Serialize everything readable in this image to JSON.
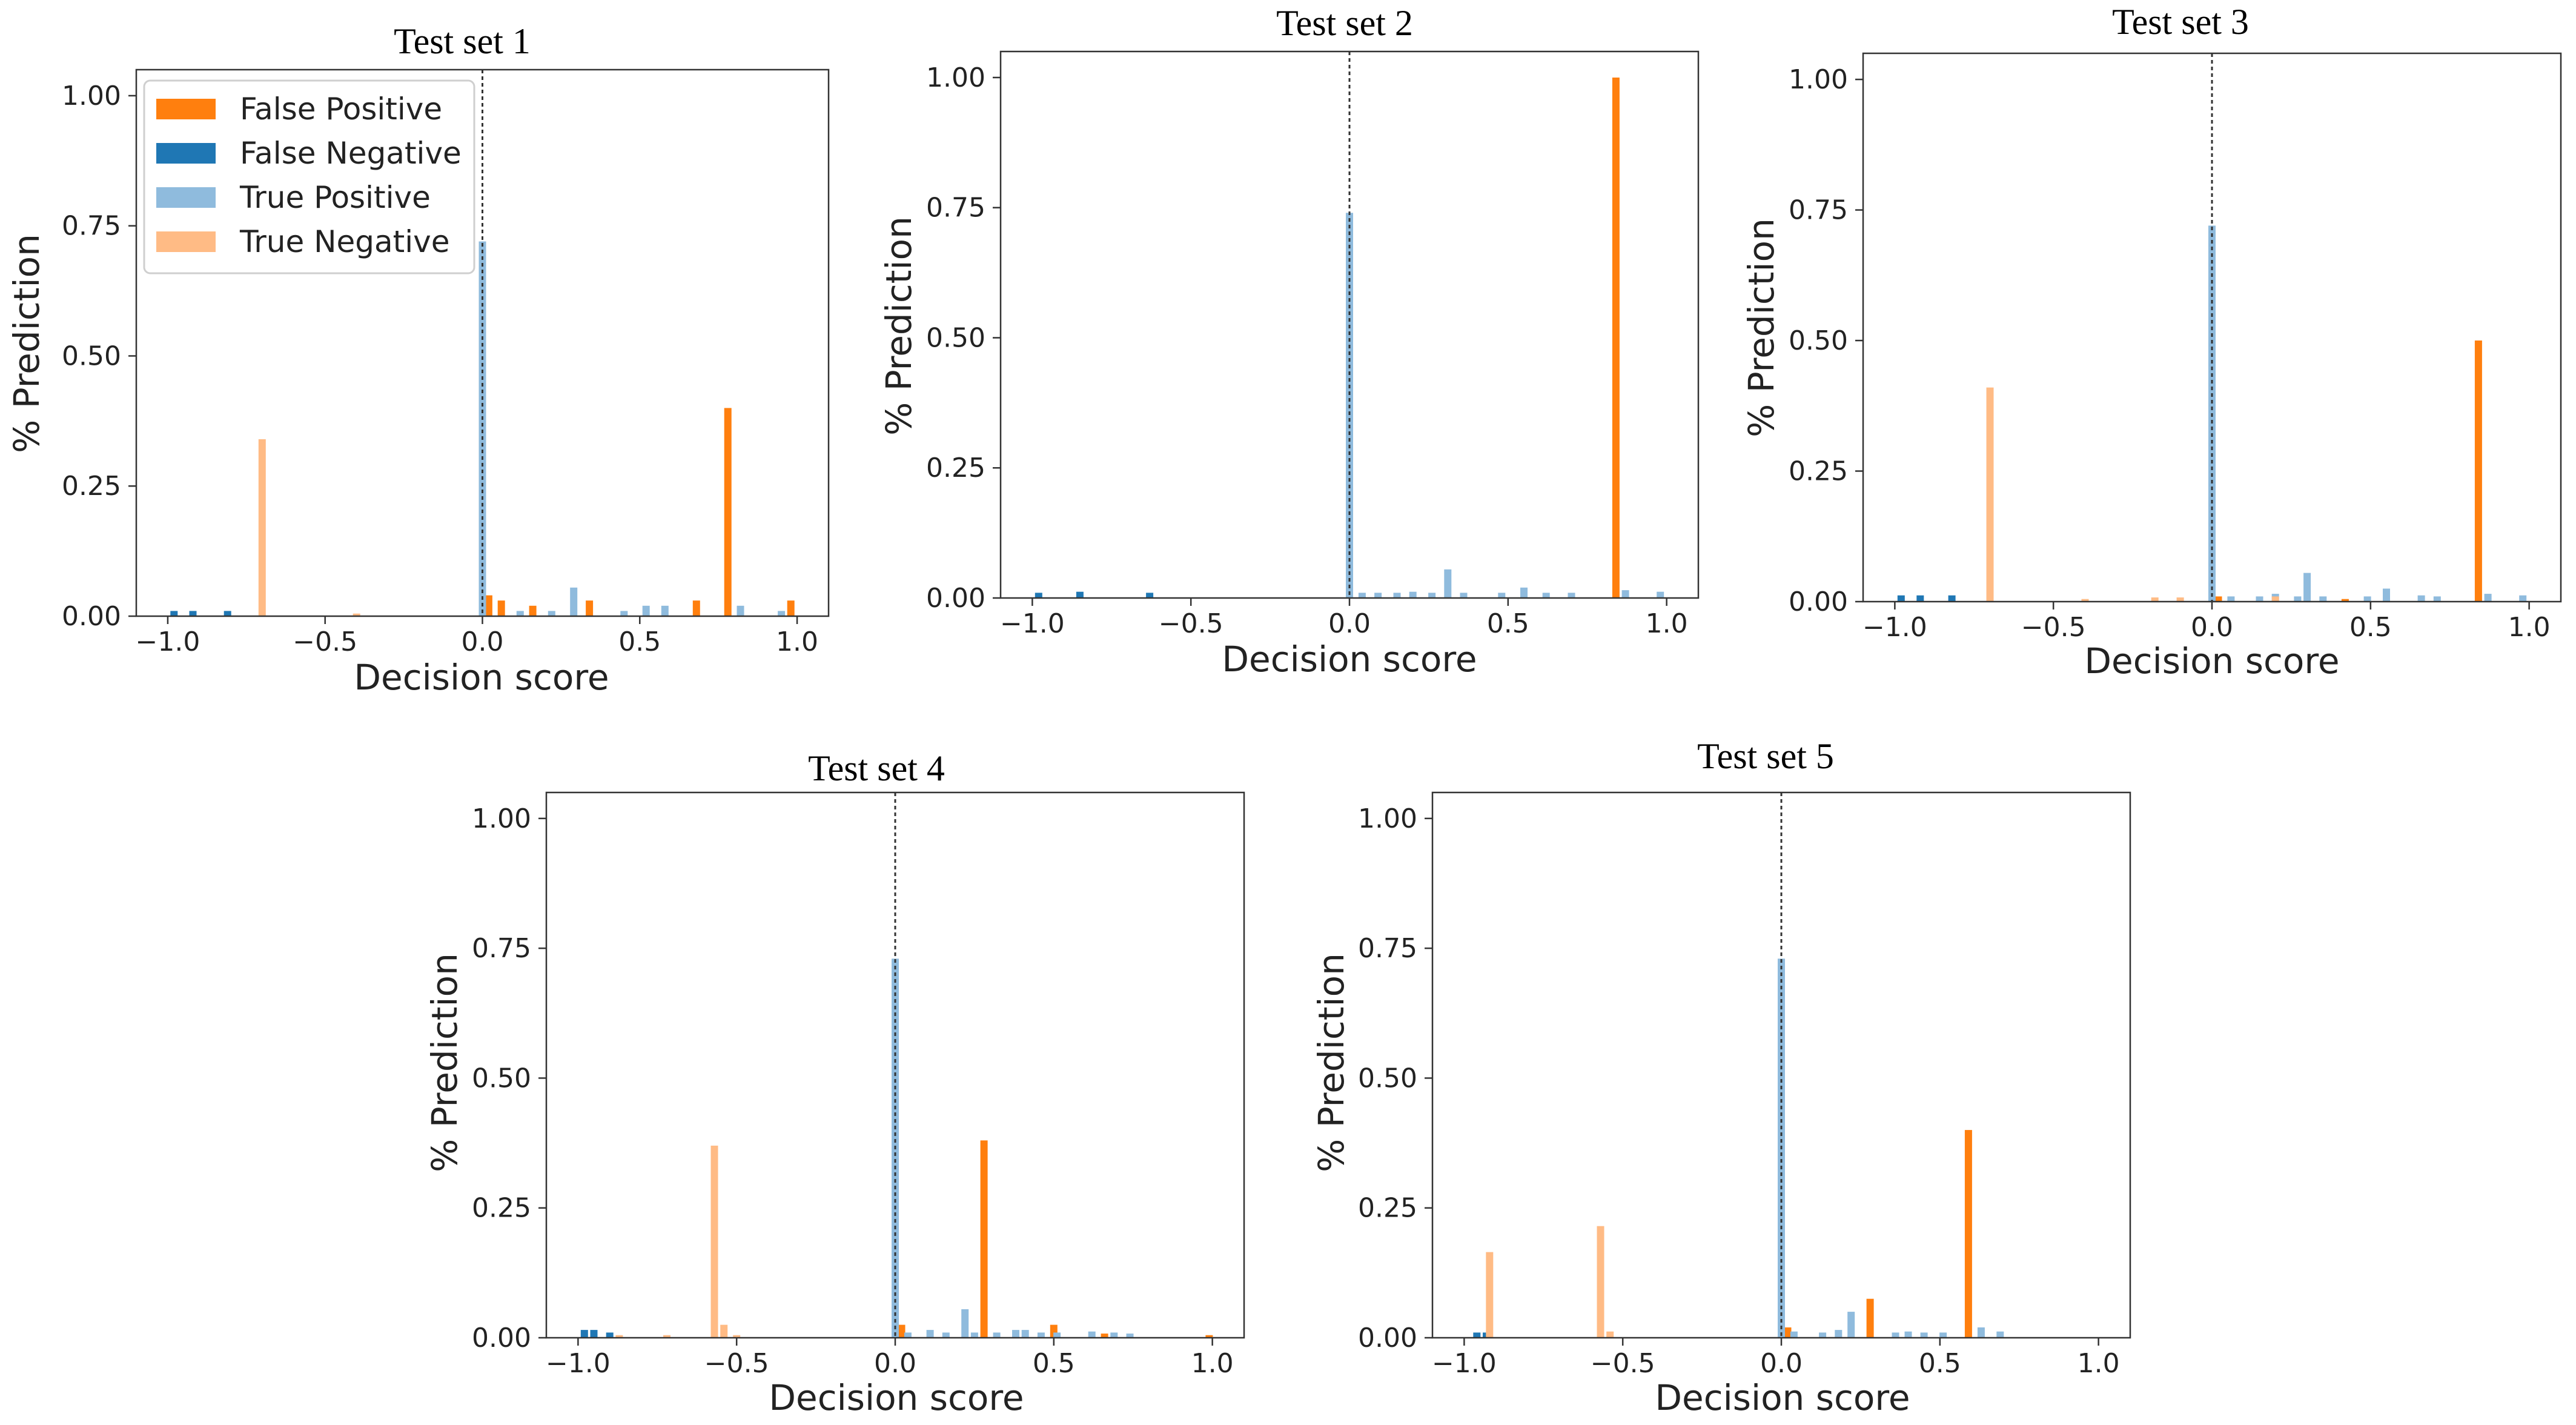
{
  "colors": {
    "false_positive": "#ff7f0e",
    "false_negative": "#1f77b4",
    "true_positive": "#8fbbdd",
    "true_negative": "#ffbb85"
  },
  "legend": {
    "false_positive": "False Positive",
    "false_negative": "False Negative",
    "true_positive": "True Positive",
    "true_negative": "True Negative"
  },
  "chart_data": [
    {
      "type": "bar",
      "title": "Test set 1",
      "xlabel": "Decision score",
      "ylabel": "% Prediction",
      "xlim": [
        -1.1,
        1.1
      ],
      "ylim": [
        0,
        1.05
      ],
      "xticks": [
        -1.0,
        -0.5,
        0.0,
        0.5,
        1.0
      ],
      "xtick_labels": [
        "−1.0",
        "−0.5",
        "0.0",
        "0.5",
        "1.0"
      ],
      "yticks": [
        0,
        0.25,
        0.5,
        0.75,
        1.0
      ],
      "ytick_labels": [
        "0.00",
        "0.25",
        "0.50",
        "0.75",
        "1.00"
      ],
      "threshold": 0,
      "legend_position": "top-left",
      "series": [
        {
          "name": "False Positive",
          "key": "false_positive",
          "x": [
            0.02,
            0.06,
            0.16,
            0.34,
            0.68,
            0.78,
            0.98
          ],
          "values": [
            0.04,
            0.03,
            0.02,
            0.03,
            0.03,
            0.4,
            0.03
          ]
        },
        {
          "name": "False Negative",
          "key": "false_negative",
          "x": [
            -0.98,
            -0.92,
            -0.81
          ],
          "values": [
            0.01,
            0.01,
            0.01
          ]
        },
        {
          "name": "True Positive",
          "key": "true_positive",
          "x": [
            0.0,
            0.12,
            0.22,
            0.29,
            0.45,
            0.52,
            0.58,
            0.82,
            0.95
          ],
          "values": [
            0.72,
            0.01,
            0.01,
            0.055,
            0.01,
            0.02,
            0.02,
            0.02,
            0.01
          ]
        },
        {
          "name": "True Negative",
          "key": "true_negative",
          "x": [
            -0.7,
            -0.4
          ],
          "values": [
            0.34,
            0.005
          ]
        }
      ]
    },
    {
      "type": "bar",
      "title": "Test set 2",
      "xlabel": "Decision score",
      "ylabel": "% Prediction",
      "xlim": [
        -1.1,
        1.1
      ],
      "ylim": [
        0,
        1.05
      ],
      "xticks": [
        -1.0,
        -0.5,
        0.0,
        0.5,
        1.0
      ],
      "xtick_labels": [
        "−1.0",
        "−0.5",
        "0.0",
        "0.5",
        "1.0"
      ],
      "yticks": [
        0,
        0.25,
        0.5,
        0.75,
        1.0
      ],
      "ytick_labels": [
        "0.00",
        "0.25",
        "0.50",
        "0.75",
        "1.00"
      ],
      "threshold": 0,
      "legend_position": "none",
      "series": [
        {
          "name": "False Positive",
          "key": "false_positive",
          "x": [
            0.84
          ],
          "values": [
            1.0
          ]
        },
        {
          "name": "False Negative",
          "key": "false_negative",
          "x": [
            -0.98,
            -0.85,
            -0.63
          ],
          "values": [
            0.01,
            0.012,
            0.01
          ]
        },
        {
          "name": "True Positive",
          "key": "true_positive",
          "x": [
            0.0,
            0.04,
            0.09,
            0.15,
            0.2,
            0.26,
            0.31,
            0.36,
            0.48,
            0.55,
            0.62,
            0.7,
            0.87,
            0.98
          ],
          "values": [
            0.74,
            0.01,
            0.01,
            0.01,
            0.012,
            0.01,
            0.055,
            0.01,
            0.01,
            0.02,
            0.01,
            0.01,
            0.015,
            0.012
          ]
        },
        {
          "name": "True Negative",
          "key": "true_negative",
          "x": [],
          "values": []
        }
      ]
    },
    {
      "type": "bar",
      "title": "Test set 3",
      "xlabel": "Decision score",
      "ylabel": "% Prediction",
      "xlim": [
        -1.1,
        1.1
      ],
      "ylim": [
        0,
        1.05
      ],
      "xticks": [
        -1.0,
        -0.5,
        0.0,
        0.5,
        1.0
      ],
      "xtick_labels": [
        "−1.0",
        "−0.5",
        "0.0",
        "0.5",
        "1.0"
      ],
      "yticks": [
        0,
        0.25,
        0.5,
        0.75,
        1.0
      ],
      "ytick_labels": [
        "0.00",
        "0.25",
        "0.50",
        "0.75",
        "1.00"
      ],
      "threshold": 0,
      "legend_position": "none",
      "series": [
        {
          "name": "False Positive",
          "key": "false_positive",
          "x": [
            0.02,
            0.42,
            0.84
          ],
          "values": [
            0.01,
            0.005,
            0.5
          ]
        },
        {
          "name": "False Negative",
          "key": "false_negative",
          "x": [
            -0.98,
            -0.92,
            -0.82
          ],
          "values": [
            0.012,
            0.012,
            0.012
          ]
        },
        {
          "name": "True Positive",
          "key": "true_positive",
          "x": [
            0.0,
            0.06,
            0.15,
            0.2,
            0.27,
            0.3,
            0.35,
            0.49,
            0.55,
            0.66,
            0.71,
            0.87,
            0.98
          ],
          "values": [
            0.72,
            0.01,
            0.01,
            0.015,
            0.01,
            0.055,
            0.01,
            0.01,
            0.025,
            0.012,
            0.01,
            0.015,
            0.012
          ]
        },
        {
          "name": "True Negative",
          "key": "true_negative",
          "x": [
            -0.7,
            -0.4,
            -0.18,
            -0.1,
            0.2
          ],
          "values": [
            0.41,
            0.005,
            0.008,
            0.008,
            0.01
          ]
        }
      ]
    },
    {
      "type": "bar",
      "title": "Test set 4",
      "xlabel": "Decision score",
      "ylabel": "% Prediction",
      "xlim": [
        -1.1,
        1.1
      ],
      "ylim": [
        0,
        1.05
      ],
      "xticks": [
        -1.0,
        -0.5,
        0.0,
        0.5,
        1.0
      ],
      "xtick_labels": [
        "−1.0",
        "−0.5",
        "0.0",
        "0.5",
        "1.0"
      ],
      "yticks": [
        0,
        0.25,
        0.5,
        0.75,
        1.0
      ],
      "ytick_labels": [
        "0.00",
        "0.25",
        "0.50",
        "0.75",
        "1.00"
      ],
      "threshold": 0,
      "legend_position": "none",
      "series": [
        {
          "name": "False Positive",
          "key": "false_positive",
          "x": [
            0.02,
            0.28,
            0.5,
            0.66,
            0.99
          ],
          "values": [
            0.025,
            0.38,
            0.025,
            0.008,
            0.005
          ]
        },
        {
          "name": "False Negative",
          "key": "false_negative",
          "x": [
            -0.98,
            -0.95,
            -0.9
          ],
          "values": [
            0.015,
            0.015,
            0.01
          ]
        },
        {
          "name": "True Positive",
          "key": "true_positive",
          "x": [
            0.0,
            0.04,
            0.11,
            0.16,
            0.22,
            0.25,
            0.32,
            0.38,
            0.41,
            0.46,
            0.51,
            0.62,
            0.69,
            0.74
          ],
          "values": [
            0.73,
            0.01,
            0.015,
            0.01,
            0.055,
            0.01,
            0.01,
            0.015,
            0.015,
            0.01,
            0.01,
            0.012,
            0.01,
            0.008
          ]
        },
        {
          "name": "True Negative",
          "key": "true_negative",
          "x": [
            -0.87,
            -0.72,
            -0.57,
            -0.54,
            -0.5
          ],
          "values": [
            0.005,
            0.005,
            0.37,
            0.025,
            0.005
          ]
        }
      ]
    },
    {
      "type": "bar",
      "title": "Test set 5",
      "xlabel": "Decision score",
      "ylabel": "% Prediction",
      "xlim": [
        -1.1,
        1.1
      ],
      "ylim": [
        0,
        1.05
      ],
      "xticks": [
        -1.0,
        -0.5,
        0.0,
        0.5,
        1.0
      ],
      "xtick_labels": [
        "−1.0",
        "−0.5",
        "0.0",
        "0.5",
        "1.0"
      ],
      "yticks": [
        0,
        0.25,
        0.5,
        0.75,
        1.0
      ],
      "ytick_labels": [
        "0.00",
        "0.25",
        "0.50",
        "0.75",
        "1.00"
      ],
      "threshold": 0,
      "legend_position": "none",
      "series": [
        {
          "name": "False Positive",
          "key": "false_positive",
          "x": [
            0.02,
            0.28,
            0.59
          ],
          "values": [
            0.02,
            0.075,
            0.4
          ]
        },
        {
          "name": "False Negative",
          "key": "false_negative",
          "x": [
            -0.96,
            -0.93
          ],
          "values": [
            0.01,
            0.01
          ]
        },
        {
          "name": "True Positive",
          "key": "true_positive",
          "x": [
            0.0,
            0.04,
            0.13,
            0.18,
            0.22,
            0.36,
            0.4,
            0.45,
            0.51,
            0.63,
            0.69
          ],
          "values": [
            0.73,
            0.012,
            0.01,
            0.015,
            0.05,
            0.01,
            0.012,
            0.01,
            0.01,
            0.02,
            0.012
          ]
        },
        {
          "name": "True Negative",
          "key": "true_negative",
          "x": [
            -0.92,
            -0.57,
            -0.54
          ],
          "values": [
            0.165,
            0.215,
            0.012
          ]
        }
      ]
    }
  ]
}
